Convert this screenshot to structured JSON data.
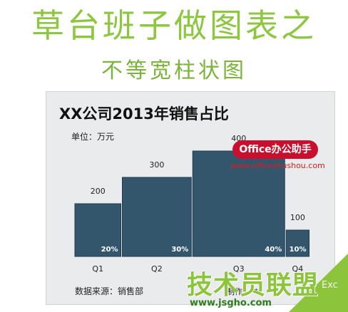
{
  "header": {
    "title": "草台班子做图表之",
    "subtitle": "不等宽柱状图"
  },
  "chart_data": {
    "type": "bar",
    "title": "XX公司2013年销售占比",
    "unit_label": "单位：万元",
    "source_label": "数据来源：销售部",
    "maker_label": "制作：**",
    "categories": [
      "Q1",
      "Q2",
      "Q3",
      "Q4"
    ],
    "values": [
      200,
      300,
      400,
      100
    ],
    "shares": [
      "20%",
      "30%",
      "40%",
      "10%"
    ],
    "ylim": [
      0,
      500
    ],
    "bar_color": "#34566d",
    "grid": false,
    "legend": "none"
  },
  "watermarks": {
    "office_badge": "Office办公助手",
    "office_url": "www.officezhushou.com",
    "site_name": "技术员联盟",
    "site_url": "www.jsgho.com",
    "corner_text": "Exc"
  }
}
